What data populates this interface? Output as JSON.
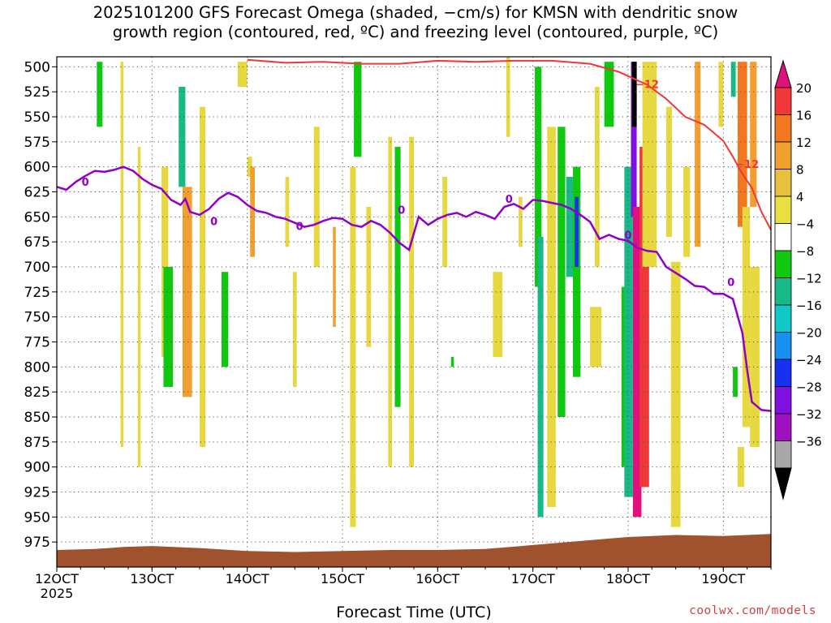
{
  "title_line1": "2025101200 GFS Forecast Omega (shaded, −cm/s) for KMSN with dendritic snow",
  "title_line2": "growth region (contoured, red, ºC) and freezing level (contoured, purple, ºC)",
  "credit": "coolwx.com/models",
  "chart_data": {
    "type": "heatmap",
    "title": "2025101200 GFS Forecast Omega (shaded, −cm/s) for KMSN with dendritic snow growth region (contoured, red, ºC) and freezing level (contoured, purple, ºC)",
    "xlabel": "Forecast Time (UTC)",
    "ylabel": "",
    "x_ticks": [
      "12OCT",
      "13OCT",
      "14OCT",
      "15OCT",
      "16OCT",
      "17OCT",
      "18OCT",
      "19OCT"
    ],
    "x_tick_year": "2025",
    "y_ticks": [
      500,
      525,
      550,
      575,
      600,
      625,
      650,
      675,
      700,
      725,
      750,
      775,
      800,
      825,
      850,
      875,
      900,
      925,
      950,
      975
    ],
    "y_unit": "hPa",
    "x_range_days": [
      12.0,
      19.5
    ],
    "y_range_hpa": [
      490,
      1000
    ],
    "grid": true,
    "colorbar": {
      "labels": [
        "20",
        "16",
        "12",
        "8",
        "4",
        "−4",
        "−8",
        "−12",
        "−16",
        "−20",
        "−24",
        "−28",
        "−32",
        "−36"
      ],
      "colors": [
        "#e0107c",
        "#f03838",
        "#f07820",
        "#f0a030",
        "#e8c040",
        "#e8e040",
        "#ffffff",
        "#10c810",
        "#18b888",
        "#10c8c8",
        "#1890f0",
        "#1830f0",
        "#8010e0",
        "#a010c0",
        "#a8a8a8",
        "#000000"
      ]
    },
    "freezing_level": {
      "color": "#9000c8",
      "label": "0",
      "points": [
        [
          12.0,
          620
        ],
        [
          12.1,
          623
        ],
        [
          12.2,
          615
        ],
        [
          12.3,
          609
        ],
        [
          12.4,
          604
        ],
        [
          12.5,
          605
        ],
        [
          12.6,
          603
        ],
        [
          12.7,
          600
        ],
        [
          12.8,
          604
        ],
        [
          12.9,
          612
        ],
        [
          13.0,
          618
        ],
        [
          13.1,
          622
        ],
        [
          13.2,
          633
        ],
        [
          13.3,
          638
        ],
        [
          13.35,
          632
        ],
        [
          13.4,
          645
        ],
        [
          13.5,
          648
        ],
        [
          13.6,
          642
        ],
        [
          13.7,
          632
        ],
        [
          13.8,
          626
        ],
        [
          13.9,
          630
        ],
        [
          14.0,
          638
        ],
        [
          14.1,
          644
        ],
        [
          14.2,
          646
        ],
        [
          14.3,
          650
        ],
        [
          14.4,
          652
        ],
        [
          14.5,
          656
        ],
        [
          14.6,
          660
        ],
        [
          14.7,
          658
        ],
        [
          14.8,
          654
        ],
        [
          14.9,
          651
        ],
        [
          15.0,
          652
        ],
        [
          15.1,
          658
        ],
        [
          15.2,
          660
        ],
        [
          15.3,
          654
        ],
        [
          15.4,
          658
        ],
        [
          15.5,
          666
        ],
        [
          15.6,
          676
        ],
        [
          15.7,
          683
        ],
        [
          15.8,
          650
        ],
        [
          15.9,
          658
        ],
        [
          16.0,
          652
        ],
        [
          16.1,
          648
        ],
        [
          16.2,
          646
        ],
        [
          16.3,
          650
        ],
        [
          16.4,
          645
        ],
        [
          16.5,
          648
        ],
        [
          16.6,
          652
        ],
        [
          16.7,
          640
        ],
        [
          16.8,
          637
        ],
        [
          16.9,
          642
        ],
        [
          17.0,
          633
        ],
        [
          17.1,
          634
        ],
        [
          17.2,
          636
        ],
        [
          17.3,
          638
        ],
        [
          17.4,
          642
        ],
        [
          17.5,
          648
        ],
        [
          17.6,
          655
        ],
        [
          17.7,
          672
        ],
        [
          17.8,
          668
        ],
        [
          17.9,
          672
        ],
        [
          18.0,
          674
        ],
        [
          18.1,
          681
        ],
        [
          18.2,
          684
        ],
        [
          18.3,
          685
        ],
        [
          18.4,
          700
        ],
        [
          18.5,
          706
        ],
        [
          18.6,
          712
        ],
        [
          18.7,
          719
        ],
        [
          18.8,
          720
        ],
        [
          18.9,
          727
        ],
        [
          19.0,
          727
        ],
        [
          19.1,
          732
        ],
        [
          19.2,
          766
        ],
        [
          19.25,
          803
        ],
        [
          19.3,
          835
        ],
        [
          19.4,
          843
        ],
        [
          19.5,
          844
        ]
      ]
    },
    "dgz_contour": {
      "color": "#f03838",
      "label": "−12",
      "points": [
        [
          14.0,
          493
        ],
        [
          14.4,
          496
        ],
        [
          14.8,
          495
        ],
        [
          15.2,
          497
        ],
        [
          15.6,
          497
        ],
        [
          16.0,
          494
        ],
        [
          16.4,
          495
        ],
        [
          16.8,
          494
        ],
        [
          17.2,
          494
        ],
        [
          17.6,
          497
        ],
        [
          17.9,
          505
        ],
        [
          18.2,
          518
        ],
        [
          18.4,
          532
        ],
        [
          18.6,
          550
        ],
        [
          18.8,
          558
        ],
        [
          19.0,
          574
        ],
        [
          19.1,
          590
        ],
        [
          19.2,
          607
        ],
        [
          19.3,
          621
        ],
        [
          19.4,
          645
        ],
        [
          19.5,
          663
        ]
      ]
    },
    "shaded_bands": [
      {
        "x": [
          12.42,
          12.48
        ],
        "p": [
          495,
          560
        ],
        "value": "-8"
      },
      {
        "x": [
          12.67,
          12.7
        ],
        "p": [
          495,
          880
        ],
        "value": "4"
      },
      {
        "x": [
          12.85,
          12.88
        ],
        "p": [
          580,
          900
        ],
        "value": "4"
      },
      {
        "x": [
          13.1,
          13.17
        ],
        "p": [
          600,
          790
        ],
        "value": "4"
      },
      {
        "x": [
          13.12,
          13.22
        ],
        "p": [
          700,
          820
        ],
        "value": "-8"
      },
      {
        "x": [
          13.28,
          13.35
        ],
        "p": [
          520,
          620
        ],
        "value": "-12"
      },
      {
        "x": [
          13.32,
          13.42
        ],
        "p": [
          620,
          830
        ],
        "value": "8"
      },
      {
        "x": [
          13.5,
          13.56
        ],
        "p": [
          540,
          880
        ],
        "value": "4"
      },
      {
        "x": [
          13.73,
          13.8
        ],
        "p": [
          705,
          800
        ],
        "value": "-8"
      },
      {
        "x": [
          13.9,
          14.0
        ],
        "p": [
          495,
          520
        ],
        "value": "4"
      },
      {
        "x": [
          14.0,
          14.05
        ],
        "p": [
          590,
          610
        ],
        "value": "4"
      },
      {
        "x": [
          14.03,
          14.08
        ],
        "p": [
          600,
          690
        ],
        "value": "8"
      },
      {
        "x": [
          14.4,
          14.44
        ],
        "p": [
          610,
          680
        ],
        "value": "4"
      },
      {
        "x": [
          14.48,
          14.52
        ],
        "p": [
          705,
          820
        ],
        "value": "4"
      },
      {
        "x": [
          14.7,
          14.76
        ],
        "p": [
          560,
          700
        ],
        "value": "4"
      },
      {
        "x": [
          14.9,
          14.93
        ],
        "p": [
          660,
          760
        ],
        "value": "8"
      },
      {
        "x": [
          15.12,
          15.2
        ],
        "p": [
          495,
          590
        ],
        "value": "-8"
      },
      {
        "x": [
          15.08,
          15.14
        ],
        "p": [
          600,
          960
        ],
        "value": "4"
      },
      {
        "x": [
          15.25,
          15.3
        ],
        "p": [
          640,
          780
        ],
        "value": "4"
      },
      {
        "x": [
          15.48,
          15.52
        ],
        "p": [
          570,
          900
        ],
        "value": "4"
      },
      {
        "x": [
          15.55,
          15.61
        ],
        "p": [
          580,
          840
        ],
        "value": "-8"
      },
      {
        "x": [
          15.7,
          15.75
        ],
        "p": [
          570,
          900
        ],
        "value": "4"
      },
      {
        "x": [
          16.05,
          16.1
        ],
        "p": [
          610,
          700
        ],
        "value": "4"
      },
      {
        "x": [
          16.14,
          16.17
        ],
        "p": [
          790,
          800
        ],
        "value": "-8"
      },
      {
        "x": [
          16.58,
          16.68
        ],
        "p": [
          705,
          790
        ],
        "value": "4"
      },
      {
        "x": [
          16.72,
          16.76
        ],
        "p": [
          480,
          570
        ],
        "value": "4"
      },
      {
        "x": [
          16.85,
          16.89
        ],
        "p": [
          630,
          680
        ],
        "value": "4"
      },
      {
        "x": [
          17.02,
          17.09
        ],
        "p": [
          500,
          720
        ],
        "value": "-8"
      },
      {
        "x": [
          17.05,
          17.11
        ],
        "p": [
          670,
          950
        ],
        "value": "-12"
      },
      {
        "x": [
          17.15,
          17.24
        ],
        "p": [
          560,
          940
        ],
        "value": "4"
      },
      {
        "x": [
          17.26,
          17.34
        ],
        "p": [
          560,
          850
        ],
        "value": "-8"
      },
      {
        "x": [
          17.35,
          17.42
        ],
        "p": [
          610,
          710
        ],
        "value": "-12"
      },
      {
        "x": [
          17.42,
          17.5
        ],
        "p": [
          600,
          810
        ],
        "value": "-8"
      },
      {
        "x": [
          17.44,
          17.48
        ],
        "p": [
          630,
          700
        ],
        "value": "-24"
      },
      {
        "x": [
          17.6,
          17.72
        ],
        "p": [
          740,
          800
        ],
        "value": "4"
      },
      {
        "x": [
          17.65,
          17.7
        ],
        "p": [
          520,
          700
        ],
        "value": "4"
      },
      {
        "x": [
          17.75,
          17.85
        ],
        "p": [
          495,
          560
        ],
        "value": "-8"
      },
      {
        "x": [
          17.93,
          18.0
        ],
        "p": [
          720,
          900
        ],
        "value": "-8"
      },
      {
        "x": [
          17.96,
          18.05
        ],
        "p": [
          600,
          930
        ],
        "value": "-12"
      },
      {
        "x": [
          18.03,
          18.09
        ],
        "p": [
          495,
          650
        ],
        "value": "-28"
      },
      {
        "x": [
          18.04,
          18.09
        ],
        "p": [
          495,
          560
        ],
        "value": "-36"
      },
      {
        "x": [
          18.05,
          18.14
        ],
        "p": [
          640,
          950
        ],
        "value": "20"
      },
      {
        "x": [
          18.12,
          18.22
        ],
        "p": [
          580,
          920
        ],
        "value": "16"
      },
      {
        "x": [
          18.15,
          18.3
        ],
        "p": [
          495,
          700
        ],
        "value": "4"
      },
      {
        "x": [
          18.4,
          18.46
        ],
        "p": [
          540,
          670
        ],
        "value": "4"
      },
      {
        "x": [
          18.45,
          18.55
        ],
        "p": [
          695,
          960
        ],
        "value": "4"
      },
      {
        "x": [
          18.58,
          18.65
        ],
        "p": [
          600,
          690
        ],
        "value": "4"
      },
      {
        "x": [
          18.7,
          18.76
        ],
        "p": [
          495,
          680
        ],
        "value": "8"
      },
      {
        "x": [
          18.95,
          19.0
        ],
        "p": [
          495,
          560
        ],
        "value": "4"
      },
      {
        "x": [
          19.08,
          19.13
        ],
        "p": [
          495,
          530
        ],
        "value": "-12"
      },
      {
        "x": [
          19.15,
          19.25
        ],
        "p": [
          495,
          660
        ],
        "value": "12"
      },
      {
        "x": [
          19.2,
          19.28
        ],
        "p": [
          640,
          860
        ],
        "value": "4"
      },
      {
        "x": [
          19.1,
          19.15
        ],
        "p": [
          800,
          830
        ],
        "value": "-8"
      },
      {
        "x": [
          19.15,
          19.22
        ],
        "p": [
          880,
          920
        ],
        "value": "4"
      },
      {
        "x": [
          19.28,
          19.35
        ],
        "p": [
          495,
          640
        ],
        "value": "8"
      },
      {
        "x": [
          19.28,
          19.38
        ],
        "p": [
          700,
          880
        ],
        "value": "4"
      }
    ]
  }
}
